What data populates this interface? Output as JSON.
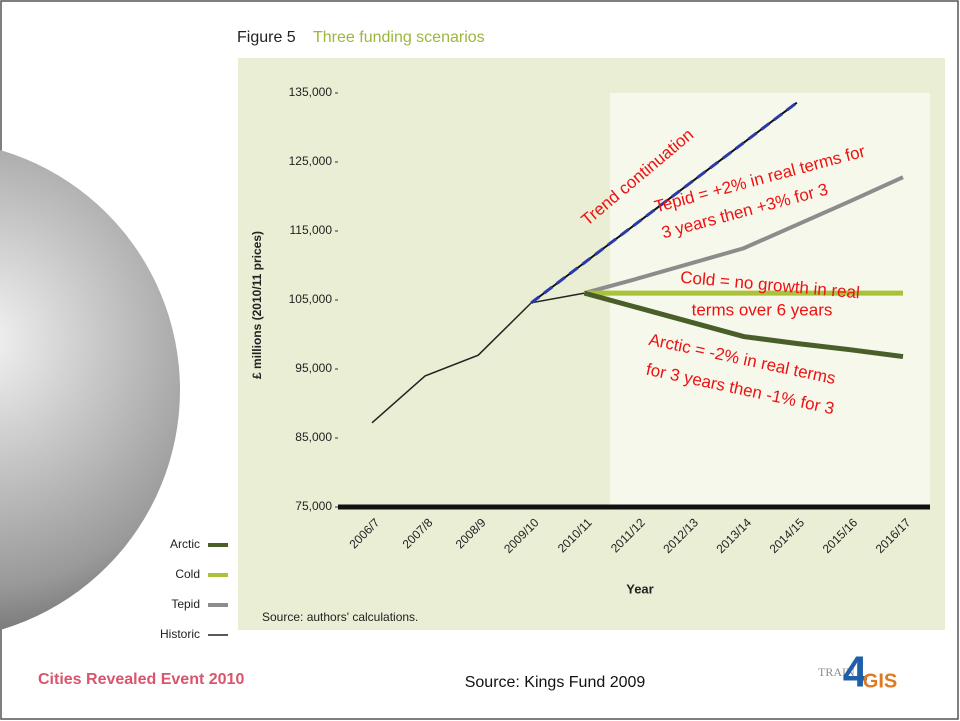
{
  "chart_data": {
    "type": "line",
    "title_label": "Figure 5",
    "title": "Three funding scenarios",
    "y_label": "£ millions (2010/11 prices)",
    "x_label": "Year",
    "source": "Source: authors' calculations.",
    "categories": [
      "2006/7",
      "2007/8",
      "2008/9",
      "2009/10",
      "2010/11",
      "2011/12",
      "2012/13",
      "2013/14",
      "2014/15",
      "2015/16",
      "2016/17"
    ],
    "ylim": [
      75000,
      135000
    ],
    "yticks": [
      {
        "value": 75000,
        "label": "75,000"
      },
      {
        "value": 85000,
        "label": "85,000"
      },
      {
        "value": 95000,
        "label": "95,000"
      },
      {
        "value": 105000,
        "label": "105,000"
      },
      {
        "value": 115000,
        "label": "115,000"
      },
      {
        "value": 125000,
        "label": "125,000"
      },
      {
        "value": 135000,
        "label": "135,000"
      }
    ],
    "series": [
      {
        "name": "Arctic",
        "color": "#4a5e2a",
        "values": [
          null,
          null,
          null,
          null,
          106000,
          103900,
          101800,
          99700,
          98700,
          97800,
          96800
        ]
      },
      {
        "name": "Cold",
        "color": "#a8c23a",
        "values": [
          null,
          null,
          null,
          null,
          106000,
          106000,
          106000,
          106000,
          106000,
          106000,
          106000
        ]
      },
      {
        "name": "Tepid",
        "color": "#8c8c8c",
        "values": [
          null,
          null,
          null,
          null,
          106000,
          108100,
          110300,
          112500,
          115900,
          119300,
          122800
        ]
      },
      {
        "name": "Historic",
        "color": "#222222",
        "values": [
          87200,
          94000,
          97000,
          104600,
          106000,
          null,
          null,
          null,
          null,
          null,
          null
        ]
      },
      {
        "color": "#2a3aa8",
        "dashed": true,
        "values": [
          null,
          null,
          null,
          104600,
          110400,
          116200,
          122000,
          127800,
          133600,
          null,
          null
        ]
      }
    ],
    "annotations": [
      {
        "text": "Trend continuation",
        "color": "#ee1111"
      },
      {
        "text": "Tepid = +2% in real terms for",
        "color": "#ee1111"
      },
      {
        "text": "3 years then +3% for 3",
        "color": "#ee1111"
      },
      {
        "text": "Cold = no growth in real",
        "color": "#ee1111"
      },
      {
        "text": "terms over 6 years",
        "color": "#ee1111"
      },
      {
        "text": "Arctic = -2% in real terms",
        "color": "#ee1111"
      },
      {
        "text": "for 3 years then -1% for 3",
        "color": "#ee1111"
      }
    ]
  },
  "footer": {
    "event": "Cities Revealed Event 2010",
    "source": "Source: Kings Fund 2009",
    "logo_left": "TRAIN",
    "logo_digit": "4",
    "logo_right": "GIS"
  }
}
